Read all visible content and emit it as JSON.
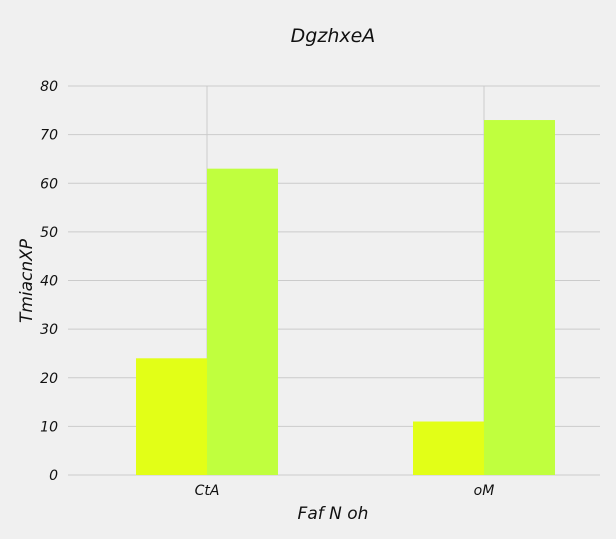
{
  "chart_data": {
    "type": "bar",
    "title": "DgzhxeA",
    "xlabel": "Faf N oh",
    "ylabel": "TmiacnXP",
    "categories": [
      "CtA",
      "oM"
    ],
    "series": [
      {
        "values": [
          24,
          11
        ],
        "color": "#e2ff17"
      },
      {
        "values": [
          63,
          73
        ],
        "color": "#c0ff3e"
      }
    ],
    "ylim": [
      0,
      80
    ],
    "yticks": [
      0,
      10,
      20,
      30,
      40,
      50,
      60,
      70,
      80
    ],
    "grid": true,
    "background": "#f0f0f0"
  }
}
